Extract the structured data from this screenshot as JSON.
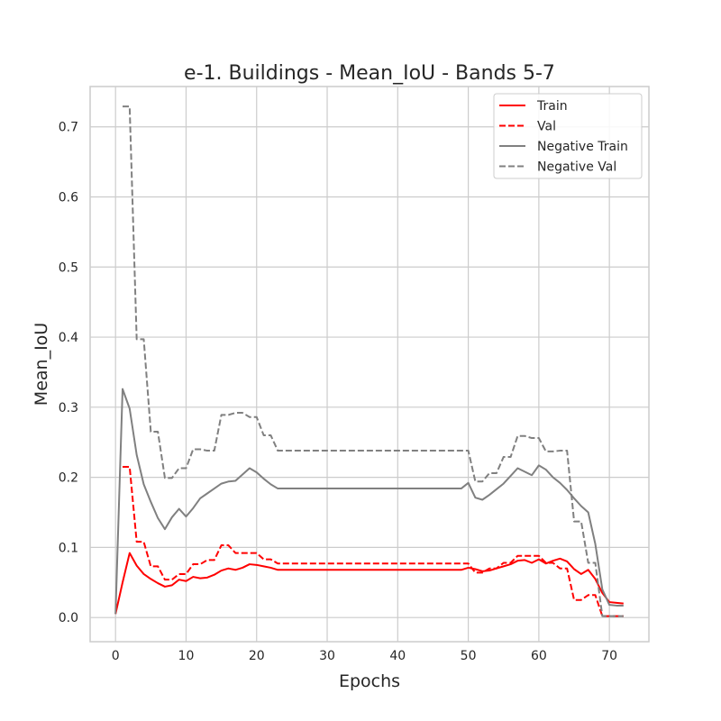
{
  "chart_data": {
    "type": "line",
    "title": "e-1. Buildings - Mean_IoU - Bands 5-7",
    "xlabel": "Epochs",
    "ylabel": "Mean_IoU",
    "xlim": [
      -3.6,
      75.6
    ],
    "ylim": [
      -0.0345,
      0.7575
    ],
    "xticks": [
      0,
      10,
      20,
      30,
      40,
      50,
      60,
      70
    ],
    "yticks": [
      0.0,
      0.1,
      0.2,
      0.3,
      0.4,
      0.5,
      0.6,
      0.7
    ],
    "ytick_labels": [
      "0.0",
      "0.1",
      "0.2",
      "0.3",
      "0.4",
      "0.5",
      "0.6",
      "0.7"
    ],
    "grid": true,
    "legend_position": "top-right",
    "series": [
      {
        "name": "Train",
        "color": "#ff0000",
        "dash": "solid",
        "x": [
          0,
          1,
          2,
          3,
          4,
          5,
          6,
          7,
          8,
          9,
          10,
          11,
          12,
          13,
          14,
          15,
          16,
          17,
          18,
          19,
          20,
          21,
          22,
          23,
          30,
          40,
          49,
          50,
          51,
          52,
          53,
          54,
          55,
          56,
          57,
          58,
          59,
          60,
          61,
          62,
          63,
          64,
          65,
          66,
          67,
          68,
          69,
          70,
          71,
          72
        ],
        "y": [
          0.005,
          0.05,
          0.092,
          0.074,
          0.062,
          0.055,
          0.049,
          0.044,
          0.046,
          0.054,
          0.052,
          0.058,
          0.056,
          0.057,
          0.061,
          0.067,
          0.07,
          0.068,
          0.071,
          0.076,
          0.075,
          0.073,
          0.071,
          0.068,
          0.068,
          0.068,
          0.068,
          0.071,
          0.069,
          0.066,
          0.067,
          0.07,
          0.073,
          0.076,
          0.081,
          0.082,
          0.078,
          0.083,
          0.077,
          0.081,
          0.084,
          0.08,
          0.069,
          0.062,
          0.068,
          0.055,
          0.035,
          0.022,
          0.021,
          0.02
        ]
      },
      {
        "name": "Val",
        "color": "#ff0000",
        "dash": "dashed",
        "x": [
          1,
          2,
          3,
          4,
          5,
          6,
          7,
          8,
          9,
          10,
          11,
          12,
          13,
          14,
          15,
          16,
          17,
          18,
          19,
          20,
          21,
          22,
          23,
          30,
          40,
          49,
          50,
          51,
          52,
          53,
          54,
          55,
          56,
          57,
          58,
          59,
          60,
          61,
          62,
          63,
          64,
          65,
          66,
          67,
          68,
          69,
          70,
          71,
          72
        ],
        "y": [
          0.215,
          0.215,
          0.108,
          0.108,
          0.073,
          0.073,
          0.054,
          0.054,
          0.062,
          0.062,
          0.076,
          0.076,
          0.082,
          0.082,
          0.103,
          0.103,
          0.092,
          0.092,
          0.092,
          0.092,
          0.083,
          0.083,
          0.077,
          0.077,
          0.077,
          0.077,
          0.077,
          0.064,
          0.064,
          0.07,
          0.07,
          0.078,
          0.078,
          0.088,
          0.088,
          0.088,
          0.088,
          0.078,
          0.078,
          0.07,
          0.07,
          0.025,
          0.025,
          0.032,
          0.032,
          0.002,
          0.002,
          0.002,
          0.002
        ]
      },
      {
        "name": "Negative Train",
        "color": "#808080",
        "dash": "solid",
        "x": [
          0,
          1,
          2,
          3,
          4,
          5,
          6,
          7,
          8,
          9,
          10,
          11,
          12,
          13,
          14,
          15,
          16,
          17,
          18,
          19,
          20,
          21,
          22,
          23,
          30,
          40,
          49,
          50,
          51,
          52,
          53,
          54,
          55,
          56,
          57,
          58,
          59,
          60,
          61,
          62,
          63,
          64,
          65,
          66,
          67,
          68,
          69,
          70,
          71,
          72
        ],
        "y": [
          0.005,
          0.326,
          0.298,
          0.232,
          0.19,
          0.165,
          0.142,
          0.126,
          0.143,
          0.155,
          0.144,
          0.156,
          0.17,
          0.177,
          0.184,
          0.191,
          0.194,
          0.195,
          0.204,
          0.213,
          0.207,
          0.198,
          0.19,
          0.184,
          0.184,
          0.184,
          0.184,
          0.192,
          0.171,
          0.168,
          0.175,
          0.183,
          0.191,
          0.202,
          0.213,
          0.208,
          0.203,
          0.217,
          0.211,
          0.2,
          0.192,
          0.182,
          0.17,
          0.159,
          0.15,
          0.105,
          0.04,
          0.018,
          0.017,
          0.017
        ]
      },
      {
        "name": "Negative Val",
        "color": "#808080",
        "dash": "dashed",
        "x": [
          1,
          2,
          3,
          4,
          5,
          6,
          7,
          8,
          9,
          10,
          11,
          12,
          13,
          14,
          15,
          16,
          17,
          18,
          19,
          20,
          21,
          22,
          23,
          30,
          40,
          49,
          50,
          51,
          52,
          53,
          54,
          55,
          56,
          57,
          58,
          59,
          60,
          61,
          62,
          63,
          64,
          65,
          66,
          67,
          68,
          69,
          70,
          71,
          72
        ],
        "y": [
          0.729,
          0.729,
          0.397,
          0.397,
          0.265,
          0.265,
          0.199,
          0.199,
          0.213,
          0.213,
          0.24,
          0.24,
          0.238,
          0.238,
          0.289,
          0.289,
          0.292,
          0.292,
          0.286,
          0.286,
          0.26,
          0.26,
          0.238,
          0.238,
          0.238,
          0.238,
          0.238,
          0.194,
          0.194,
          0.206,
          0.206,
          0.229,
          0.229,
          0.259,
          0.259,
          0.256,
          0.256,
          0.237,
          0.237,
          0.238,
          0.238,
          0.137,
          0.137,
          0.078,
          0.078,
          0.002,
          0.002,
          0.002,
          0.002
        ]
      }
    ]
  }
}
